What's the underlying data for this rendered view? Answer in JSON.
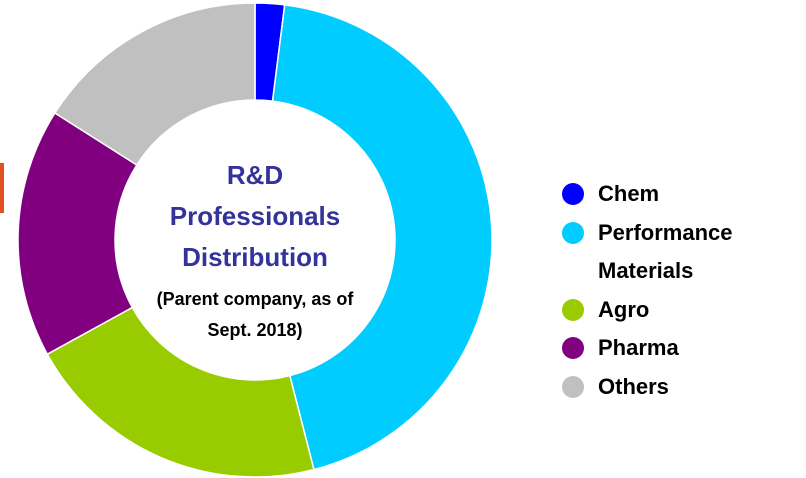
{
  "chart_data": {
    "type": "donut",
    "title": "R&D Professionals Distribution",
    "subtitle": "(Parent company, as of Sept. 2018)",
    "categories": [
      "Chem",
      "Performance Materials",
      "Agro",
      "Pharma",
      "Others"
    ],
    "values": [
      2,
      44,
      21,
      17,
      16
    ],
    "colors": [
      "#0000ff",
      "#00ccff",
      "#99cc00",
      "#800080",
      "#c0c0c0"
    ],
    "legend": "right"
  }
}
